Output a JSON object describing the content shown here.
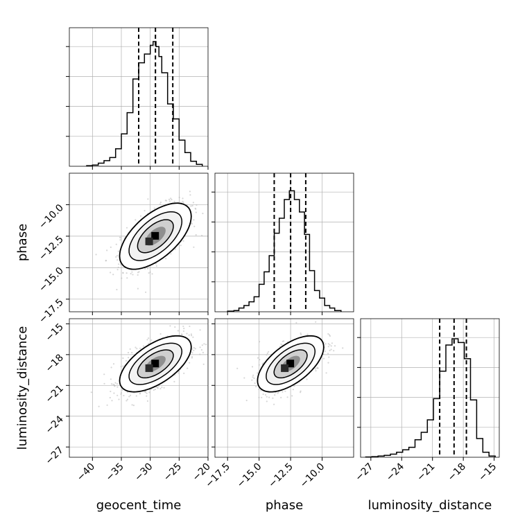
{
  "chart_data": {
    "type": "corner",
    "parameters": [
      {
        "name": "geocent_time",
        "label": "geocent_time",
        "ticks": [
          -40,
          -35,
          -30,
          -25,
          -20
        ],
        "range": [
          -44,
          -20
        ]
      },
      {
        "name": "phase",
        "label": "phase",
        "ticks": [
          -17.5,
          -15.0,
          -12.5,
          -10.0
        ],
        "range": [
          -18.5,
          -7.5
        ]
      },
      {
        "name": "luminosity_distance",
        "label": "luminosity_distance",
        "ticks": [
          -27,
          -24,
          -21,
          -18,
          -15
        ],
        "range": [
          -28,
          -14.5
        ]
      }
    ],
    "tick_labels": {
      "geocent_time": [
        "−40",
        "−35",
        "−30",
        "−25",
        "−20"
      ],
      "phase": [
        "−17.5",
        "−15.0",
        "−12.5",
        "−10.0"
      ],
      "luminosity_distance": [
        "−27",
        "−24",
        "−21",
        "−18",
        "−15"
      ]
    },
    "quantiles": {
      "geocent_time": [
        -32,
        -29.1,
        -26.1
      ],
      "phase": [
        -13.8,
        -12.5,
        -11.3
      ],
      "luminosity_distance": [
        -20.3,
        -18.9,
        -17.7
      ]
    },
    "histograms": {
      "geocent_time": {
        "edges": [
          -41,
          -40,
          -39,
          -38,
          -37,
          -36,
          -35,
          -34,
          -33,
          -32,
          -31,
          -30,
          -29.5,
          -29,
          -28.5,
          -28,
          -27,
          -26,
          -25,
          -24,
          -23,
          -22,
          -21
        ],
        "counts": [
          0.005,
          0.01,
          0.025,
          0.045,
          0.07,
          0.14,
          0.26,
          0.43,
          0.7,
          0.83,
          0.9,
          0.97,
          1.0,
          0.96,
          0.88,
          0.75,
          0.5,
          0.38,
          0.21,
          0.11,
          0.04,
          0.015
        ]
      },
      "phase": {
        "edges": [
          -17.5,
          -17.0,
          -16.6,
          -16.2,
          -15.8,
          -15.4,
          -15.0,
          -14.6,
          -14.2,
          -13.8,
          -13.4,
          -13.0,
          -12.6,
          -12.2,
          -11.8,
          -11.4,
          -11.0,
          -10.6,
          -10.2,
          -9.8,
          -9.4,
          -9.0,
          -8.5
        ],
        "counts": [
          0.005,
          0.01,
          0.03,
          0.05,
          0.08,
          0.12,
          0.22,
          0.32,
          0.45,
          0.63,
          0.75,
          0.9,
          0.97,
          0.9,
          0.8,
          0.62,
          0.33,
          0.17,
          0.11,
          0.05,
          0.03,
          0.01
        ]
      },
      "luminosity_distance": {
        "edges": [
          -27.5,
          -26.9,
          -26.3,
          -25.7,
          -25.1,
          -24.5,
          -23.9,
          -23.3,
          -22.7,
          -22.1,
          -21.5,
          -20.9,
          -20.3,
          -19.7,
          -19.1,
          -18.5,
          -17.9,
          -17.3,
          -16.7,
          -16.1,
          -15.5,
          -14.9
        ],
        "counts": [
          0.002,
          0.005,
          0.01,
          0.015,
          0.025,
          0.04,
          0.06,
          0.08,
          0.14,
          0.2,
          0.3,
          0.47,
          0.69,
          0.9,
          0.95,
          0.92,
          0.79,
          0.46,
          0.15,
          0.04,
          0.01
        ]
      }
    },
    "correlations": {
      "phase|geocent_time": 0.6,
      "luminosity_distance|geocent_time": 0.6,
      "luminosity_distance|phase": 0.6
    },
    "density_levels": [
      "black",
      "dark gray",
      "gray",
      "light gray"
    ],
    "vertical_lines": "dashed",
    "grid": true,
    "colors": {
      "line": "#000000",
      "grid": "#b0b0b0",
      "scatter": "#bdbdbd"
    }
  }
}
